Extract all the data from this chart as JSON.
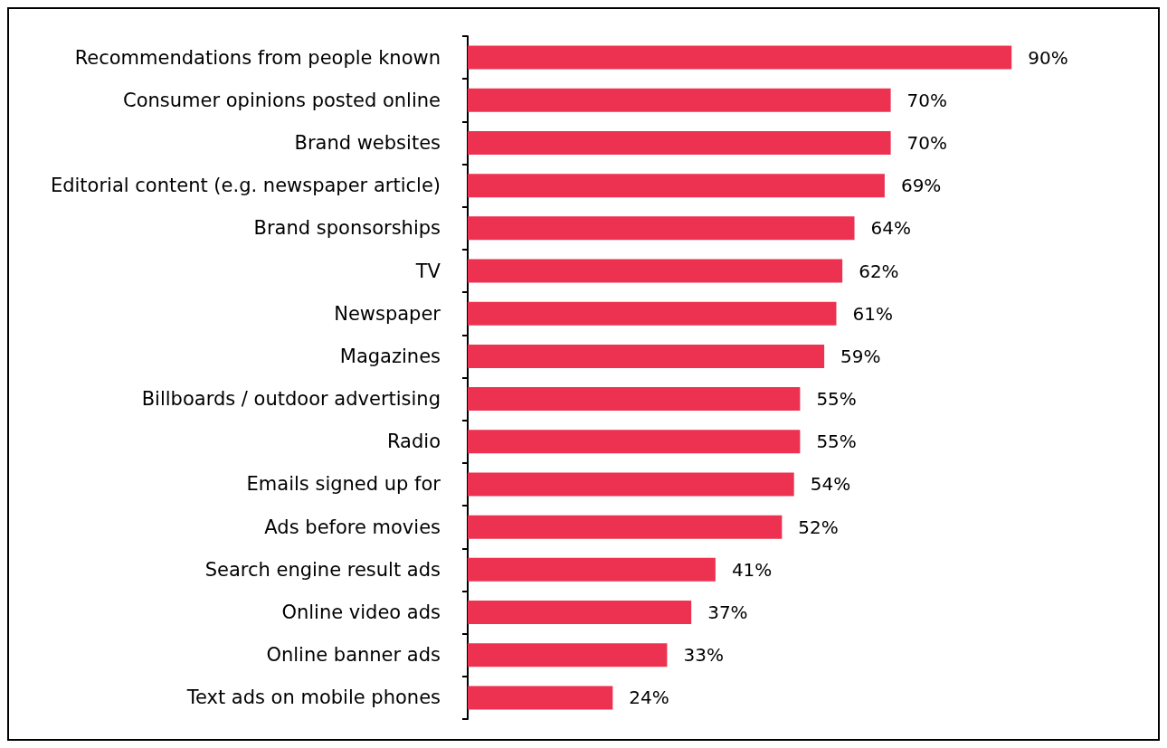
{
  "chart_data": {
    "type": "bar",
    "orientation": "horizontal",
    "categories": [
      "Recommendations from people known",
      "Consumer opinions posted online",
      "Brand websites",
      "Editorial content (e.g. newspaper article)",
      "Brand sponsorships",
      "TV",
      "Newspaper",
      "Magazines",
      "Billboards / outdoor advertising",
      "Radio",
      "Emails signed up for",
      "Ads before movies",
      "Search engine result ads",
      "Online video ads",
      "Online banner ads",
      "Text ads on mobile phones"
    ],
    "values": [
      90,
      70,
      70,
      69,
      64,
      62,
      61,
      59,
      55,
      55,
      54,
      52,
      41,
      37,
      33,
      24
    ],
    "value_labels": [
      "90%",
      "70%",
      "70%",
      "69%",
      "64%",
      "62%",
      "61%",
      "59%",
      "55%",
      "55%",
      "54%",
      "52%",
      "41%",
      "37%",
      "33%",
      "24%"
    ],
    "color": "#ec3250",
    "tick_labels": "y"
  }
}
